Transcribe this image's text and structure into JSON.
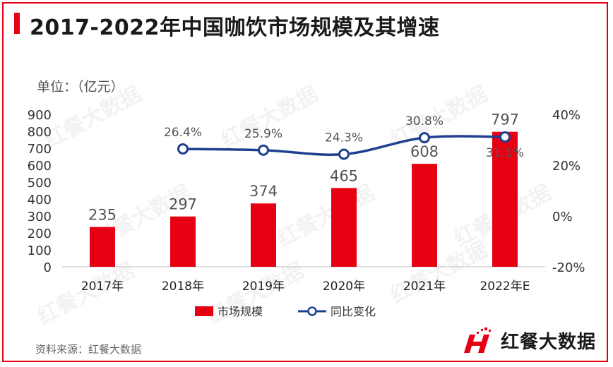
{
  "title": "2017-2022年中国咖饮市场规模及其增速",
  "unit_label": "单位：（亿元）",
  "source": "资料来源：红餐大数据",
  "brand": "红餐大数据",
  "watermark": "红餐大数据",
  "colors": {
    "bar": "#e60012",
    "line": "#1f3f8f",
    "marker_fill": "#ffffff"
  },
  "chart_data": {
    "type": "bar",
    "categories": [
      "2017年",
      "2018年",
      "2019年",
      "2020年",
      "2021年",
      "2022年E"
    ],
    "series": [
      {
        "name": "市场规模",
        "type": "bar",
        "axis": "left",
        "values": [
          235,
          297,
          374,
          465,
          608,
          797
        ]
      },
      {
        "name": "同比变化",
        "type": "line",
        "axis": "right",
        "values": [
          null,
          26.4,
          25.9,
          24.3,
          30.8,
          31.1
        ],
        "labels": [
          "",
          "26.4%",
          "25.9%",
          "24.3%",
          "30.8%",
          "31.1%"
        ]
      }
    ],
    "bar_labels": [
      "235",
      "297",
      "374",
      "465",
      "608",
      "797"
    ],
    "y_left": {
      "min": 0,
      "max": 900,
      "ticks": [
        "0",
        "100",
        "200",
        "300",
        "400",
        "500",
        "600",
        "700",
        "800",
        "900"
      ]
    },
    "y_right": {
      "min": -20,
      "max": 40,
      "ticks": [
        "-20%",
        "0%",
        "20%",
        "40%"
      ]
    },
    "legend": {
      "position": "bottom",
      "items": [
        "市场规模",
        "同比变化"
      ]
    },
    "grid": false
  }
}
